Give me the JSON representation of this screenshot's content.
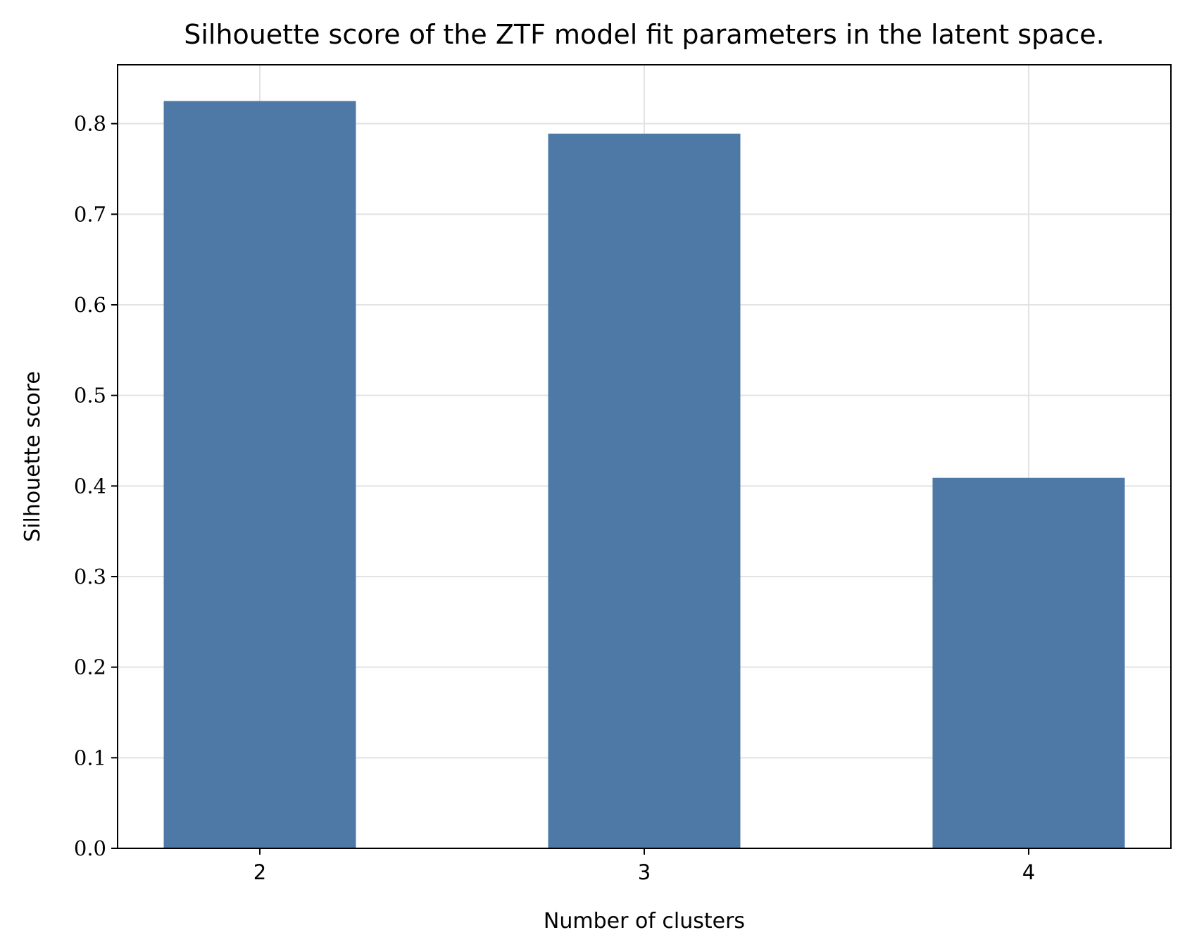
{
  "chart_data": {
    "type": "bar",
    "title": "Silhouette score of the ZTF model fit parameters in the latent space.",
    "xlabel": "Number of clusters",
    "ylabel": "Silhouette score",
    "categories": [
      "2",
      "3",
      "4"
    ],
    "values": [
      0.825,
      0.789,
      0.409
    ],
    "ylim": [
      0,
      0.865
    ],
    "yticks": [
      0.0,
      0.1,
      0.2,
      0.3,
      0.4,
      0.5,
      0.6,
      0.7,
      0.8
    ],
    "ytick_labels": [
      "0.0",
      "0.1",
      "0.2",
      "0.3",
      "0.4",
      "0.5",
      "0.6",
      "0.7",
      "0.8"
    ],
    "grid": true,
    "bar_color": "#4e79a7",
    "grid_color": "#e3e3e3"
  }
}
